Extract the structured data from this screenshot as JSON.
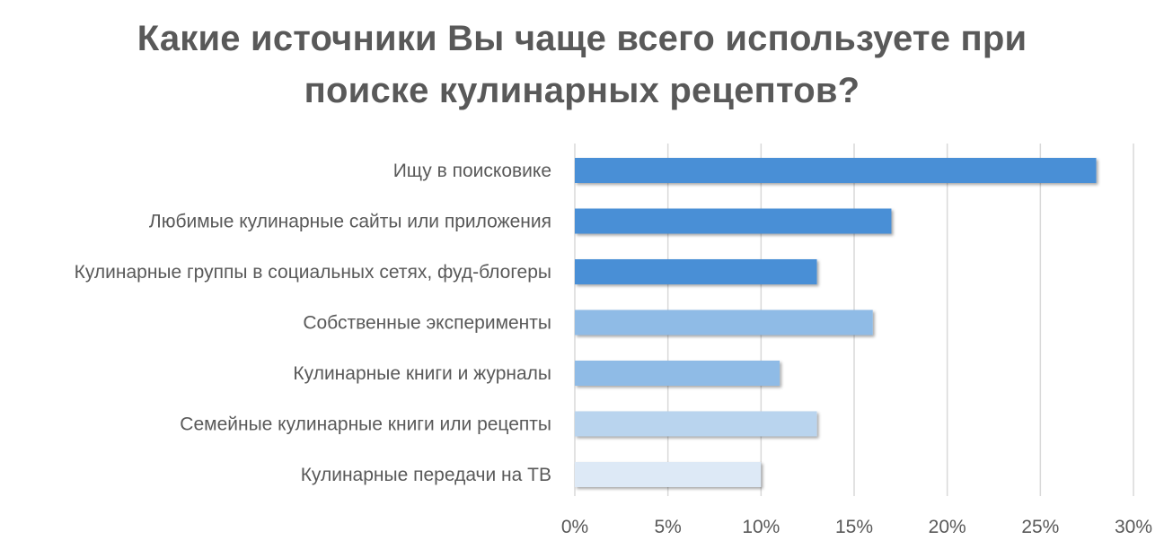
{
  "chart_data": {
    "type": "bar",
    "orientation": "horizontal",
    "title_lines": [
      "Какие источники Вы чаще всего используете при",
      "поиске кулинарных рецептов?"
    ],
    "categories": [
      "Ищу в поисковике",
      "Любимые кулинарные сайты или приложения",
      "Кулинарные группы в социальных сетях, фуд-блогеры",
      "Собственные эксперименты",
      "Кулинарные книги и журналы",
      "Семейные кулинарные книги или рецепты",
      "Кулинарные передачи на ТВ"
    ],
    "values": [
      28,
      17,
      13,
      16,
      11,
      13,
      10
    ],
    "bar_colors": [
      "#4a8fd6",
      "#4a8fd6",
      "#4a8fd6",
      "#8fbbe6",
      "#8fbbe6",
      "#b9d4ee",
      "#dde9f6"
    ],
    "x_ticks": [
      0,
      5,
      10,
      15,
      20,
      25,
      30
    ],
    "x_tick_labels": [
      "0%",
      "5%",
      "10%",
      "15%",
      "20%",
      "25%",
      "30%"
    ],
    "xlim": [
      0,
      30
    ],
    "grid": true,
    "legend": "none",
    "xlabel": "",
    "ylabel": ""
  }
}
